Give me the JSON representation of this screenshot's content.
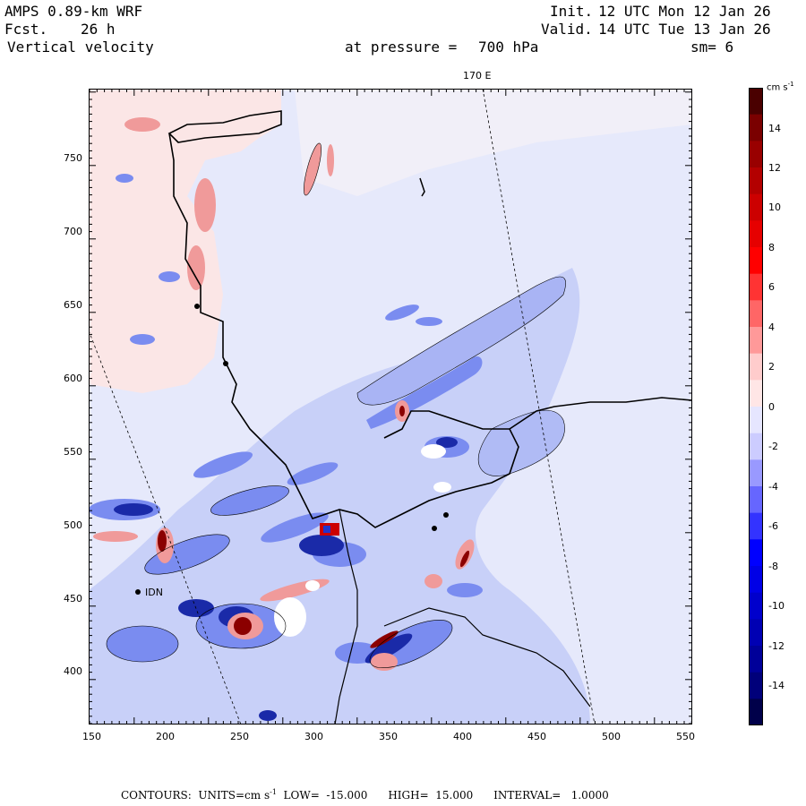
{
  "header": {
    "model": "AMPS 0.89-km WRF",
    "fcst_label": "Fcst.",
    "fcst_value": "26 h",
    "variable": "Vertical velocity",
    "init_label": "Init.",
    "init_value": "12 UTC Mon 12 Jan 26",
    "valid_label": "Valid.",
    "valid_value": "14 UTC Tue 13 Jan 26",
    "pressure_label": "at pressure =",
    "pressure_value": "700 hPa",
    "smooth": "sm= 6"
  },
  "map": {
    "meridian_label": "170 E",
    "station_label": "IDN",
    "x_ticks": [
      "150",
      "200",
      "250",
      "300",
      "350",
      "400",
      "450",
      "500",
      "550"
    ],
    "y_ticks": [
      "750",
      "700",
      "650",
      "600",
      "550",
      "500",
      "450",
      "400"
    ],
    "colors": {
      "strong_neg": "#000080",
      "neg": "#3a4fe0",
      "weak_neg": "#c8d0f8",
      "faint_neg": "#e6e9fb",
      "faint_pos": "#fbe6e6",
      "pos": "#f09a9a",
      "strong_pos": "#8b0000"
    }
  },
  "colorbar": {
    "units": "cm s",
    "units_exp": "-1",
    "labels": [
      "14",
      "12",
      "10",
      "8",
      "6",
      "4",
      "2",
      "0",
      "-2",
      "-4",
      "-6",
      "-8",
      "-10",
      "-12",
      "-14"
    ],
    "colors": [
      "#4a0000",
      "#7a0000",
      "#990000",
      "#b30000",
      "#cc0000",
      "#e60000",
      "#ff0000",
      "#ff3333",
      "#ff6666",
      "#ff9999",
      "#ffcccc",
      "#ffe6e6",
      "#e6e6ff",
      "#ccccff",
      "#9999ff",
      "#6666ff",
      "#3333ff",
      "#0000ff",
      "#0000e6",
      "#0000cc",
      "#0000b3",
      "#000099",
      "#00007a",
      "#00004a"
    ]
  },
  "footer": {
    "contours": "CONTOURS:  UNITS=cm s",
    "exp": "-1",
    "low": "LOW=  -15.000",
    "high": "HIGH=  15.000",
    "interval": "INTERVAL=   1.0000"
  }
}
